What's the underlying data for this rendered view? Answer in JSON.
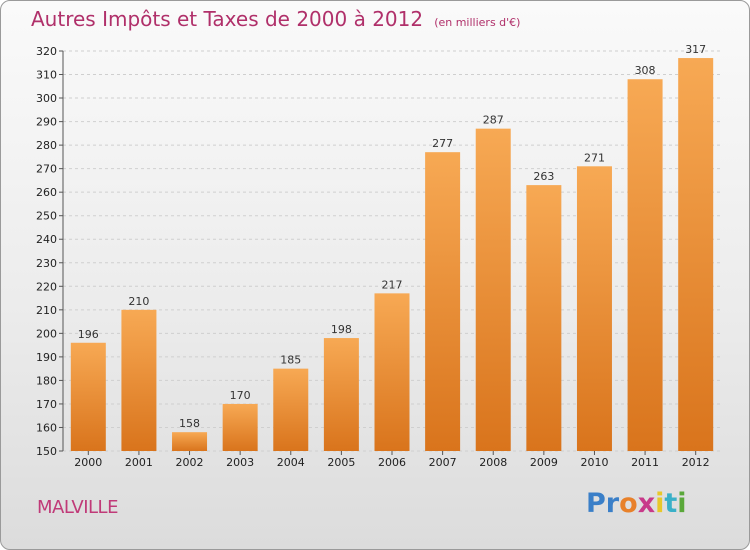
{
  "title": "Autres Impôts et Taxes de 2000 à 2012",
  "subtitle": "(en milliers d'€)",
  "town": "MALVILLE",
  "logo": {
    "letters": [
      "P",
      "r",
      "o",
      "x",
      "i",
      "t",
      "i"
    ],
    "colors": [
      "#3a7fc8",
      "#3a7fc8",
      "#e8812a",
      "#c83a8a",
      "#e8c82a",
      "#3ab0c8",
      "#5aa83a"
    ]
  },
  "colors": {
    "bar_top": "#f7a954",
    "bar_bottom": "#d9741c",
    "grid": "#cfcfcf",
    "title": "#b0306a"
  },
  "chart_data": {
    "type": "bar",
    "categories": [
      "2000",
      "2001",
      "2002",
      "2003",
      "2004",
      "2005",
      "2006",
      "2007",
      "2008",
      "2009",
      "2010",
      "2011",
      "2012"
    ],
    "values": [
      196,
      210,
      158,
      170,
      185,
      198,
      217,
      277,
      287,
      263,
      271,
      308,
      317
    ],
    "ylim": [
      150,
      320
    ],
    "yticks": [
      150,
      160,
      170,
      180,
      190,
      200,
      210,
      220,
      230,
      240,
      250,
      260,
      270,
      280,
      290,
      300,
      310,
      320
    ],
    "grid": "horizontal dashed"
  }
}
